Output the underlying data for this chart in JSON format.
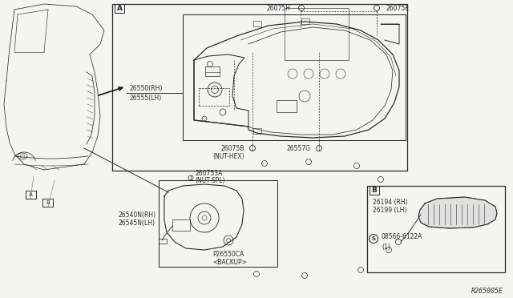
{
  "bg_color": "#f5f5f0",
  "line_color": "#2a2a2a",
  "gray_color": "#888888",
  "ref_code": "R265005E",
  "labels": {
    "part_A_label": "A",
    "part_B_label": "B",
    "car_A": "A",
    "car_B": "B",
    "p26550": "26550(RH)",
    "p26555": "26555(LH)",
    "p26540N": "26540N(RH)",
    "p26545N": "26545N(LH)",
    "p26075H": "26075H",
    "p26075E": "26075E",
    "p26075B": "26075B",
    "p26075B_sub": "(NUT-HEX)",
    "p26557G": "26557G",
    "p260753A": "260753A",
    "p260753A_sub": "(NUT-SPL)",
    "p26550CA": "P26550CA",
    "p26550CA_sub": "<BACKUP>",
    "p26194": "26194 (RH)",
    "p26199": "26199 (LH)",
    "p08566": "08566-6122A",
    "p08566_sub": "(1)"
  }
}
